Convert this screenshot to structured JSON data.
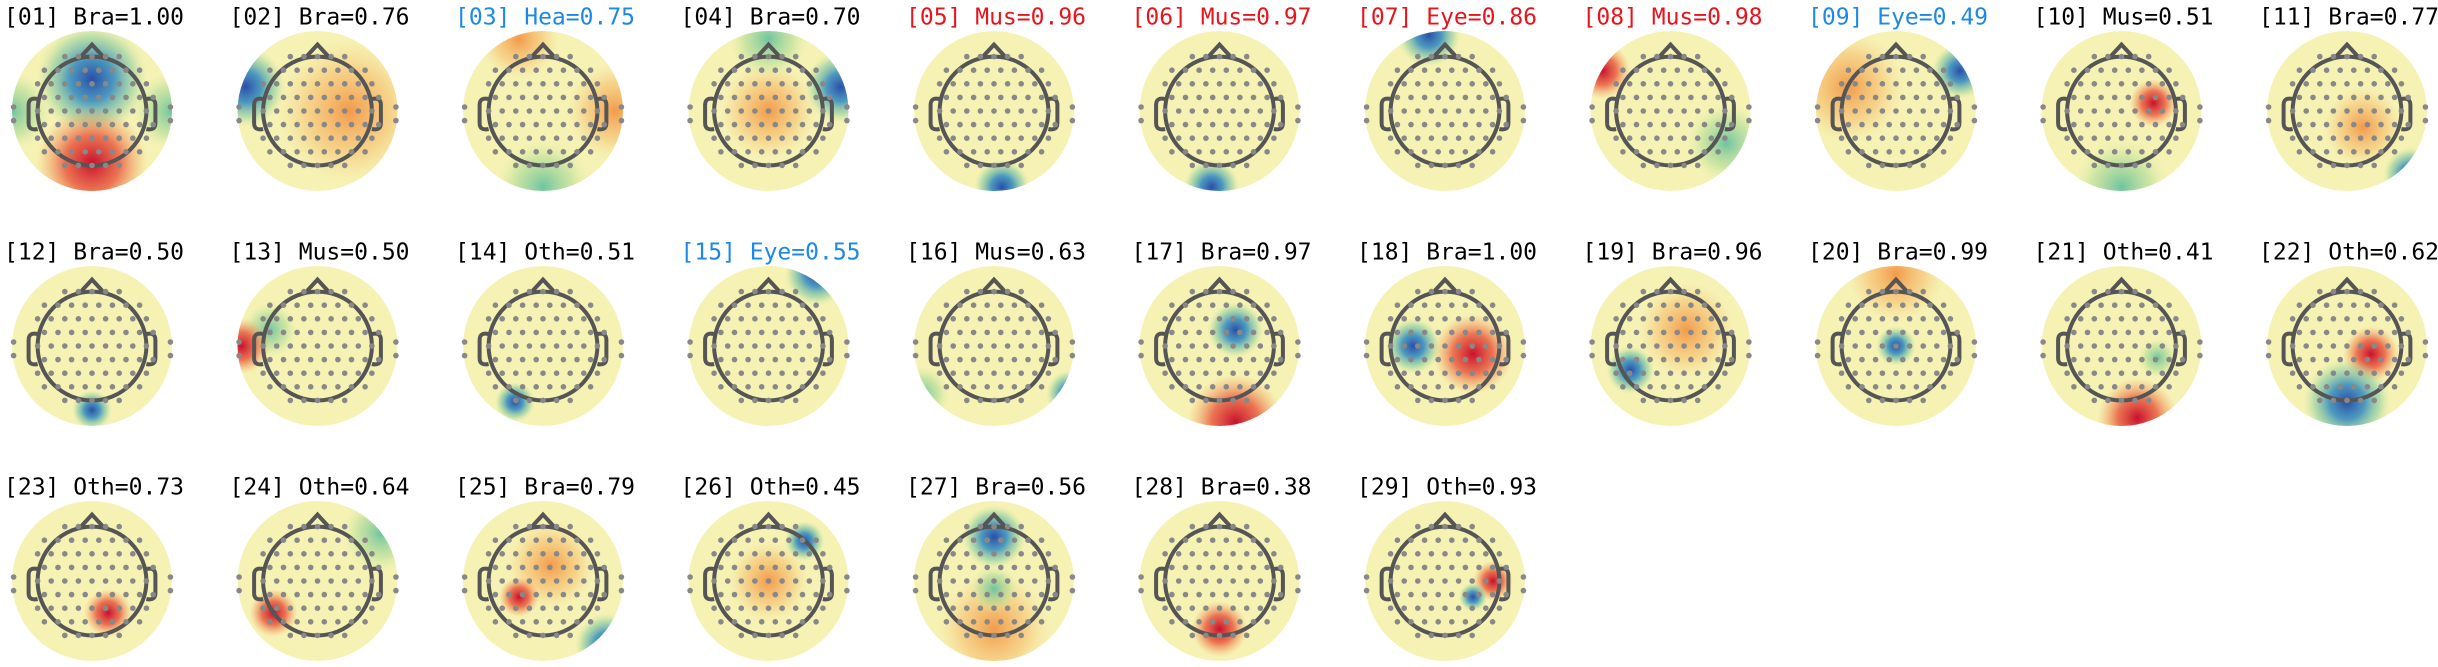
{
  "components": [
    {
      "label": "[01] Bra=1.00",
      "color": "#000000"
    },
    {
      "label": "[02] Bra=0.76",
      "color": "#000000"
    },
    {
      "label": "[03] Hea=0.75",
      "color": "#1e88e5"
    },
    {
      "label": "[04] Bra=0.70",
      "color": "#000000"
    },
    {
      "label": "[05] Mus=0.96",
      "color": "#e8141c"
    },
    {
      "label": "[06] Mus=0.97",
      "color": "#e8141c"
    },
    {
      "label": "[07] Eye=0.86",
      "color": "#e8141c"
    },
    {
      "label": "[08] Mus=0.98",
      "color": "#e8141c"
    },
    {
      "label": "[09] Eye=0.49",
      "color": "#1e88e5"
    },
    {
      "label": "[10] Mus=0.51",
      "color": "#000000"
    },
    {
      "label": "[11] Bra=0.77",
      "color": "#000000"
    },
    {
      "label": "[12] Bra=0.50",
      "color": "#000000"
    },
    {
      "label": "[13] Mus=0.50",
      "color": "#000000"
    },
    {
      "label": "[14] Oth=0.51",
      "color": "#000000"
    },
    {
      "label": "[15] Eye=0.55",
      "color": "#1e88e5"
    },
    {
      "label": "[16] Mus=0.63",
      "color": "#000000"
    },
    {
      "label": "[17] Bra=0.97",
      "color": "#000000"
    },
    {
      "label": "[18] Bra=1.00",
      "color": "#000000"
    },
    {
      "label": "[19] Bra=0.96",
      "color": "#000000"
    },
    {
      "label": "[20] Bra=0.99",
      "color": "#000000"
    },
    {
      "label": "[21] Oth=0.41",
      "color": "#000000"
    },
    {
      "label": "[22] Oth=0.62",
      "color": "#000000"
    },
    {
      "label": "[23] Oth=0.73",
      "color": "#000000"
    },
    {
      "label": "[24] Oth=0.64",
      "color": "#000000"
    },
    {
      "label": "[25] Bra=0.79",
      "color": "#000000"
    },
    {
      "label": "[26] Oth=0.45",
      "color": "#000000"
    },
    {
      "label": "[27] Bra=0.56",
      "color": "#000000"
    },
    {
      "label": "[28] Bra=0.38",
      "color": "#000000"
    },
    {
      "label": "[29] Oth=0.93",
      "color": "#000000"
    }
  ]
}
